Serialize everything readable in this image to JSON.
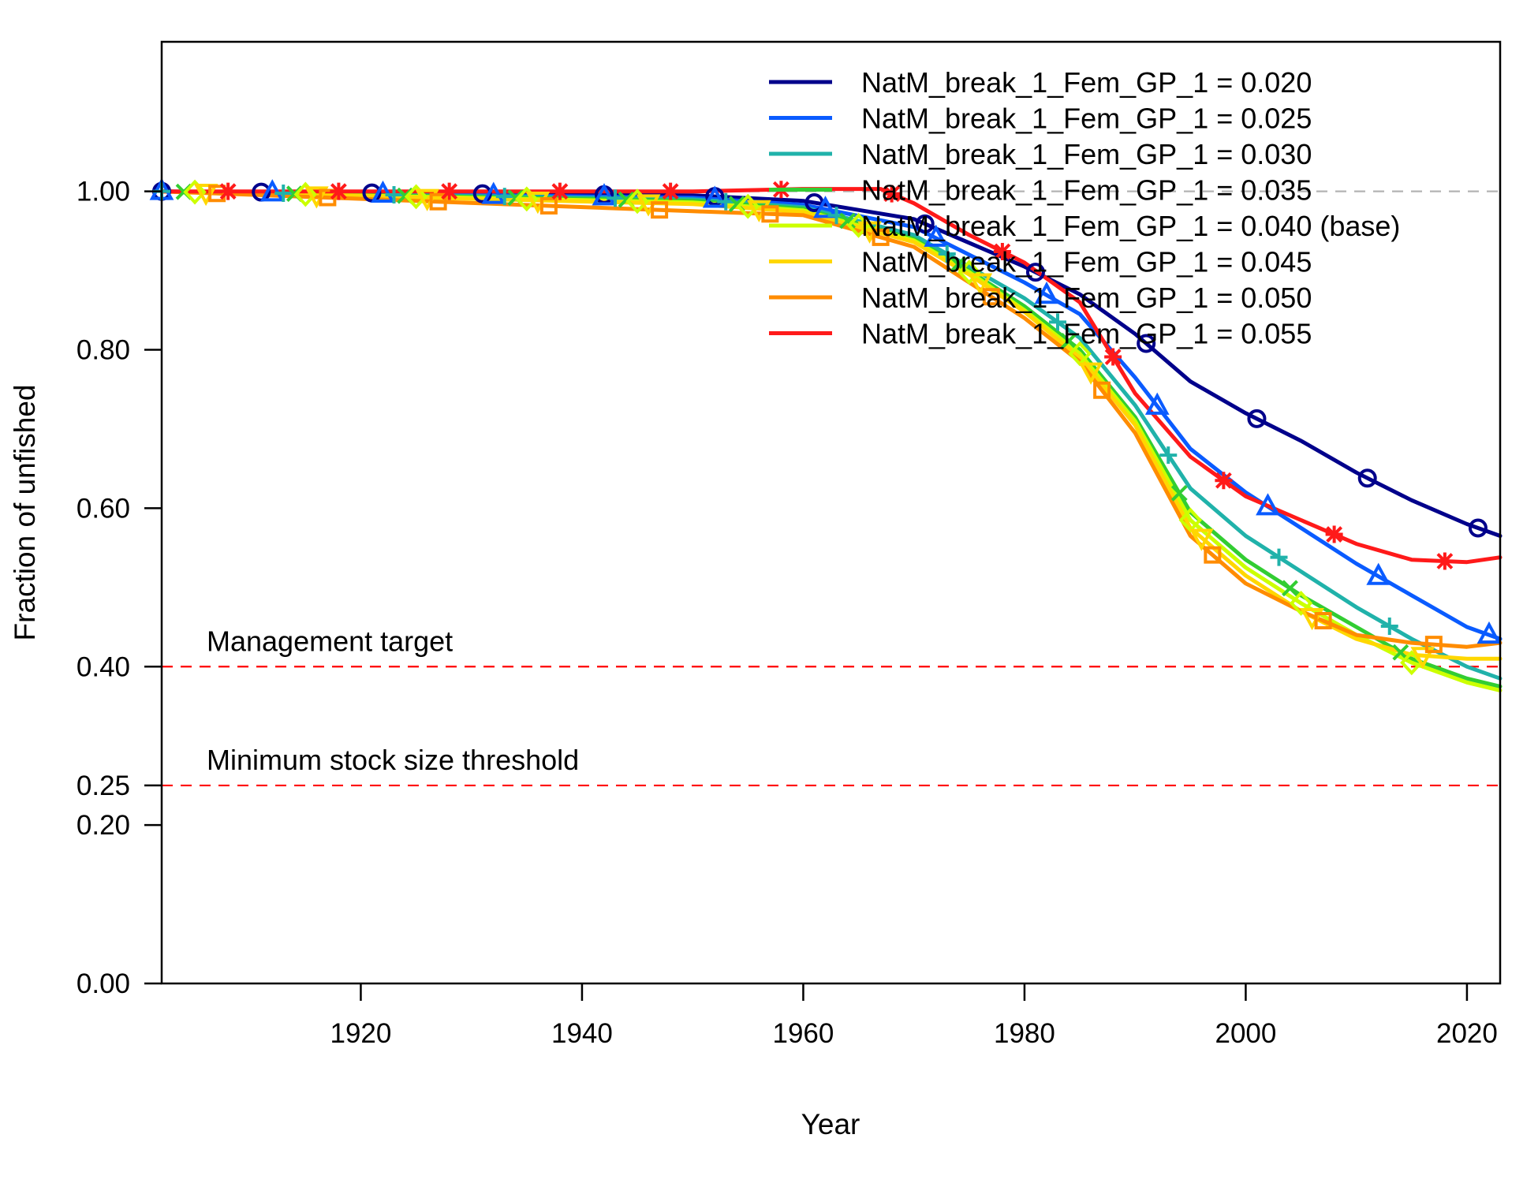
{
  "chart_data": {
    "type": "line",
    "title": "",
    "xlabel": "Year",
    "ylabel": "Fraction of unfished",
    "xlim": [
      1902,
      2023
    ],
    "ylim": [
      0,
      1.15
    ],
    "x_ticks": [
      1920,
      1940,
      1960,
      1980,
      2000,
      2020
    ],
    "y_ticks": [
      0.0,
      0.2,
      0.25,
      0.4,
      0.6,
      0.8,
      1.0
    ],
    "y_tick_labels": [
      "0.00",
      "0.20",
      "0.25",
      "0.40",
      "0.60",
      "0.80",
      "1.00"
    ],
    "grid": false,
    "legend": "top-right",
    "reference_lines": [
      {
        "y": 1.0,
        "label": "",
        "color": "#b3b3b3",
        "style": "dashed"
      },
      {
        "y": 0.4,
        "label": "Management target",
        "color": "#ff0000",
        "style": "dashed"
      },
      {
        "y": 0.25,
        "label": "Minimum stock size threshold",
        "color": "#ff0000",
        "style": "dashed"
      }
    ],
    "series": [
      {
        "name": "NatM_break_1_Fem_GP_1 = 0.020",
        "color": "#00008b",
        "marker": "circle",
        "x": [
          1902,
          1950,
          1960,
          1970,
          1975,
          1980,
          1985,
          1990,
          1995,
          2000,
          2005,
          2010,
          2015,
          2020,
          2023
        ],
        "y": [
          1.0,
          0.995,
          0.988,
          0.965,
          0.935,
          0.905,
          0.87,
          0.82,
          0.76,
          0.72,
          0.685,
          0.645,
          0.61,
          0.58,
          0.565
        ],
        "marker_x": [
          1902,
          1911,
          1921,
          1931,
          1942,
          1952,
          1961,
          1971,
          1981,
          1991,
          2001,
          2011,
          2021
        ]
      },
      {
        "name": "NatM_break_1_Fem_GP_1 = 0.025",
        "color": "#0a5bff",
        "marker": "triangle",
        "x": [
          1902,
          1950,
          1960,
          1970,
          1975,
          1980,
          1985,
          1990,
          1995,
          2000,
          2005,
          2010,
          2015,
          2020,
          2023
        ],
        "y": [
          1.0,
          0.992,
          0.983,
          0.955,
          0.92,
          0.885,
          0.845,
          0.765,
          0.675,
          0.62,
          0.575,
          0.53,
          0.49,
          0.45,
          0.435
        ],
        "marker_x": [
          1902,
          1912,
          1922,
          1932,
          1942,
          1952,
          1962,
          1972,
          1982,
          1992,
          2002,
          2012,
          2022
        ]
      },
      {
        "name": "NatM_break_1_Fem_GP_1 = 0.030",
        "color": "#20b2aa",
        "marker": "plus",
        "x": [
          1902,
          1950,
          1960,
          1970,
          1975,
          1980,
          1985,
          1990,
          1995,
          2000,
          2005,
          2010,
          2015,
          2020,
          2023
        ],
        "y": [
          1.0,
          0.99,
          0.98,
          0.945,
          0.905,
          0.865,
          0.815,
          0.73,
          0.625,
          0.565,
          0.52,
          0.475,
          0.435,
          0.4,
          0.385
        ],
        "marker_x": [
          1902,
          1913,
          1923,
          1933,
          1943,
          1953,
          1963,
          1973,
          1983,
          1993,
          2003,
          2013
        ]
      },
      {
        "name": "NatM_break_1_Fem_GP_1 = 0.035",
        "color": "#32cd32",
        "marker": "x",
        "x": [
          1902,
          1950,
          1960,
          1970,
          1975,
          1980,
          1985,
          1990,
          1995,
          2000,
          2005,
          2010,
          2015,
          2020,
          2023
        ],
        "y": [
          1.0,
          0.988,
          0.978,
          0.94,
          0.9,
          0.855,
          0.8,
          0.715,
          0.595,
          0.535,
          0.49,
          0.45,
          0.41,
          0.385,
          0.375
        ],
        "marker_x": [
          1904,
          1914,
          1924,
          1934,
          1944,
          1954,
          1964,
          1974,
          1984,
          1994,
          2004,
          2014
        ]
      },
      {
        "name": "NatM_break_1_Fem_GP_1 = 0.040 (base)",
        "color": "#ccff00",
        "marker": "diamond",
        "x": [
          1902,
          1950,
          1960,
          1970,
          1975,
          1980,
          1985,
          1990,
          1995,
          2000,
          2005,
          2010,
          2015,
          2020,
          2023
        ],
        "y": [
          1.0,
          0.986,
          0.976,
          0.938,
          0.898,
          0.85,
          0.795,
          0.71,
          0.585,
          0.525,
          0.48,
          0.44,
          0.405,
          0.38,
          0.37
        ],
        "marker_x": [
          1905,
          1915,
          1925,
          1935,
          1945,
          1955,
          1965,
          1975,
          1985,
          1995,
          2005,
          2015
        ]
      },
      {
        "name": "NatM_break_1_Fem_GP_1 = 0.045",
        "color": "#ffd700",
        "marker": "inv-triangle",
        "x": [
          1902,
          1950,
          1960,
          1970,
          1975,
          1980,
          1985,
          1990,
          1995,
          2000,
          2005,
          2010,
          2015,
          2020,
          2023
        ],
        "y": [
          1.0,
          0.984,
          0.974,
          0.936,
          0.895,
          0.848,
          0.79,
          0.705,
          0.575,
          0.515,
          0.47,
          0.435,
          0.415,
          0.41,
          0.41
        ],
        "marker_x": [
          1906,
          1916,
          1926,
          1936,
          1946,
          1956,
          1966,
          1976,
          1986,
          1996,
          2006,
          2016
        ]
      },
      {
        "name": "NatM_break_1_Fem_GP_1 = 0.050",
        "color": "#ff8c00",
        "marker": "square",
        "x": [
          1902,
          1950,
          1960,
          1970,
          1975,
          1980,
          1985,
          1990,
          1995,
          2000,
          2005,
          2010,
          2015,
          2020,
          2023
        ],
        "y": [
          1.0,
          0.975,
          0.97,
          0.93,
          0.885,
          0.84,
          0.785,
          0.695,
          0.565,
          0.505,
          0.47,
          0.44,
          0.43,
          0.425,
          0.43
        ],
        "marker_x": [
          1907,
          1917,
          1927,
          1937,
          1947,
          1957,
          1967,
          1977,
          1987,
          1997,
          2007,
          2017
        ]
      },
      {
        "name": "NatM_break_1_Fem_GP_1 = 0.055",
        "color": "#ff1a1a",
        "marker": "asterisk",
        "x": [
          1902,
          1950,
          1960,
          1967,
          1970,
          1975,
          1980,
          1985,
          1990,
          1995,
          2000,
          2005,
          2010,
          2015,
          2020,
          2023
        ],
        "y": [
          1.0,
          1.0,
          1.003,
          1.003,
          0.985,
          0.945,
          0.91,
          0.86,
          0.745,
          0.665,
          0.615,
          0.585,
          0.555,
          0.535,
          0.532,
          0.538
        ],
        "marker_x": [
          1908,
          1918,
          1928,
          1938,
          1948,
          1958,
          1968,
          1978,
          1988,
          1998,
          2008,
          2018
        ]
      }
    ]
  }
}
